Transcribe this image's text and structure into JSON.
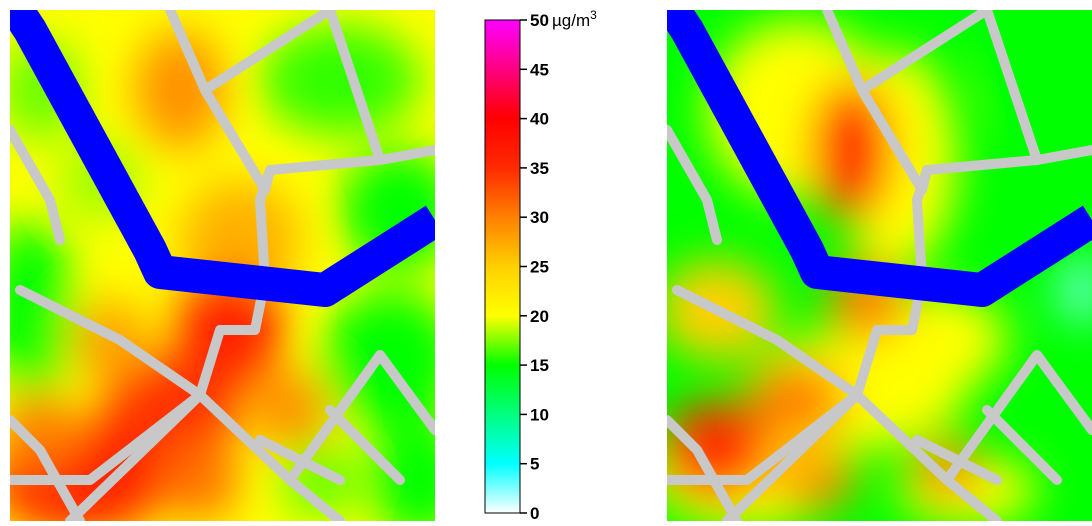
{
  "legend": {
    "unit_prefix": "µg/m",
    "unit_superscript": "3",
    "ticks": [
      "0",
      "5",
      "10",
      "15",
      "20",
      "25",
      "30",
      "35",
      "40",
      "45",
      "50"
    ],
    "min": 0,
    "max": 50,
    "color_stops": [
      {
        "value": 0,
        "color": "#ffffff"
      },
      {
        "value": 5,
        "color": "#00ffff"
      },
      {
        "value": 10,
        "color": "#00ff7f"
      },
      {
        "value": 15,
        "color": "#00ff00"
      },
      {
        "value": 20,
        "color": "#ffff00"
      },
      {
        "value": 25,
        "color": "#ffd000"
      },
      {
        "value": 30,
        "color": "#ff8000"
      },
      {
        "value": 35,
        "color": "#ff2a00"
      },
      {
        "value": 40,
        "color": "#ff0000"
      },
      {
        "value": 45,
        "color": "#ff0080"
      },
      {
        "value": 50,
        "color": "#ff00ff"
      }
    ]
  },
  "maps": [
    {
      "name": "pollution-map-left"
    },
    {
      "name": "pollution-map-right"
    }
  ],
  "colors": {
    "river": "#0000ff",
    "roads": "#c8c8c8"
  }
}
